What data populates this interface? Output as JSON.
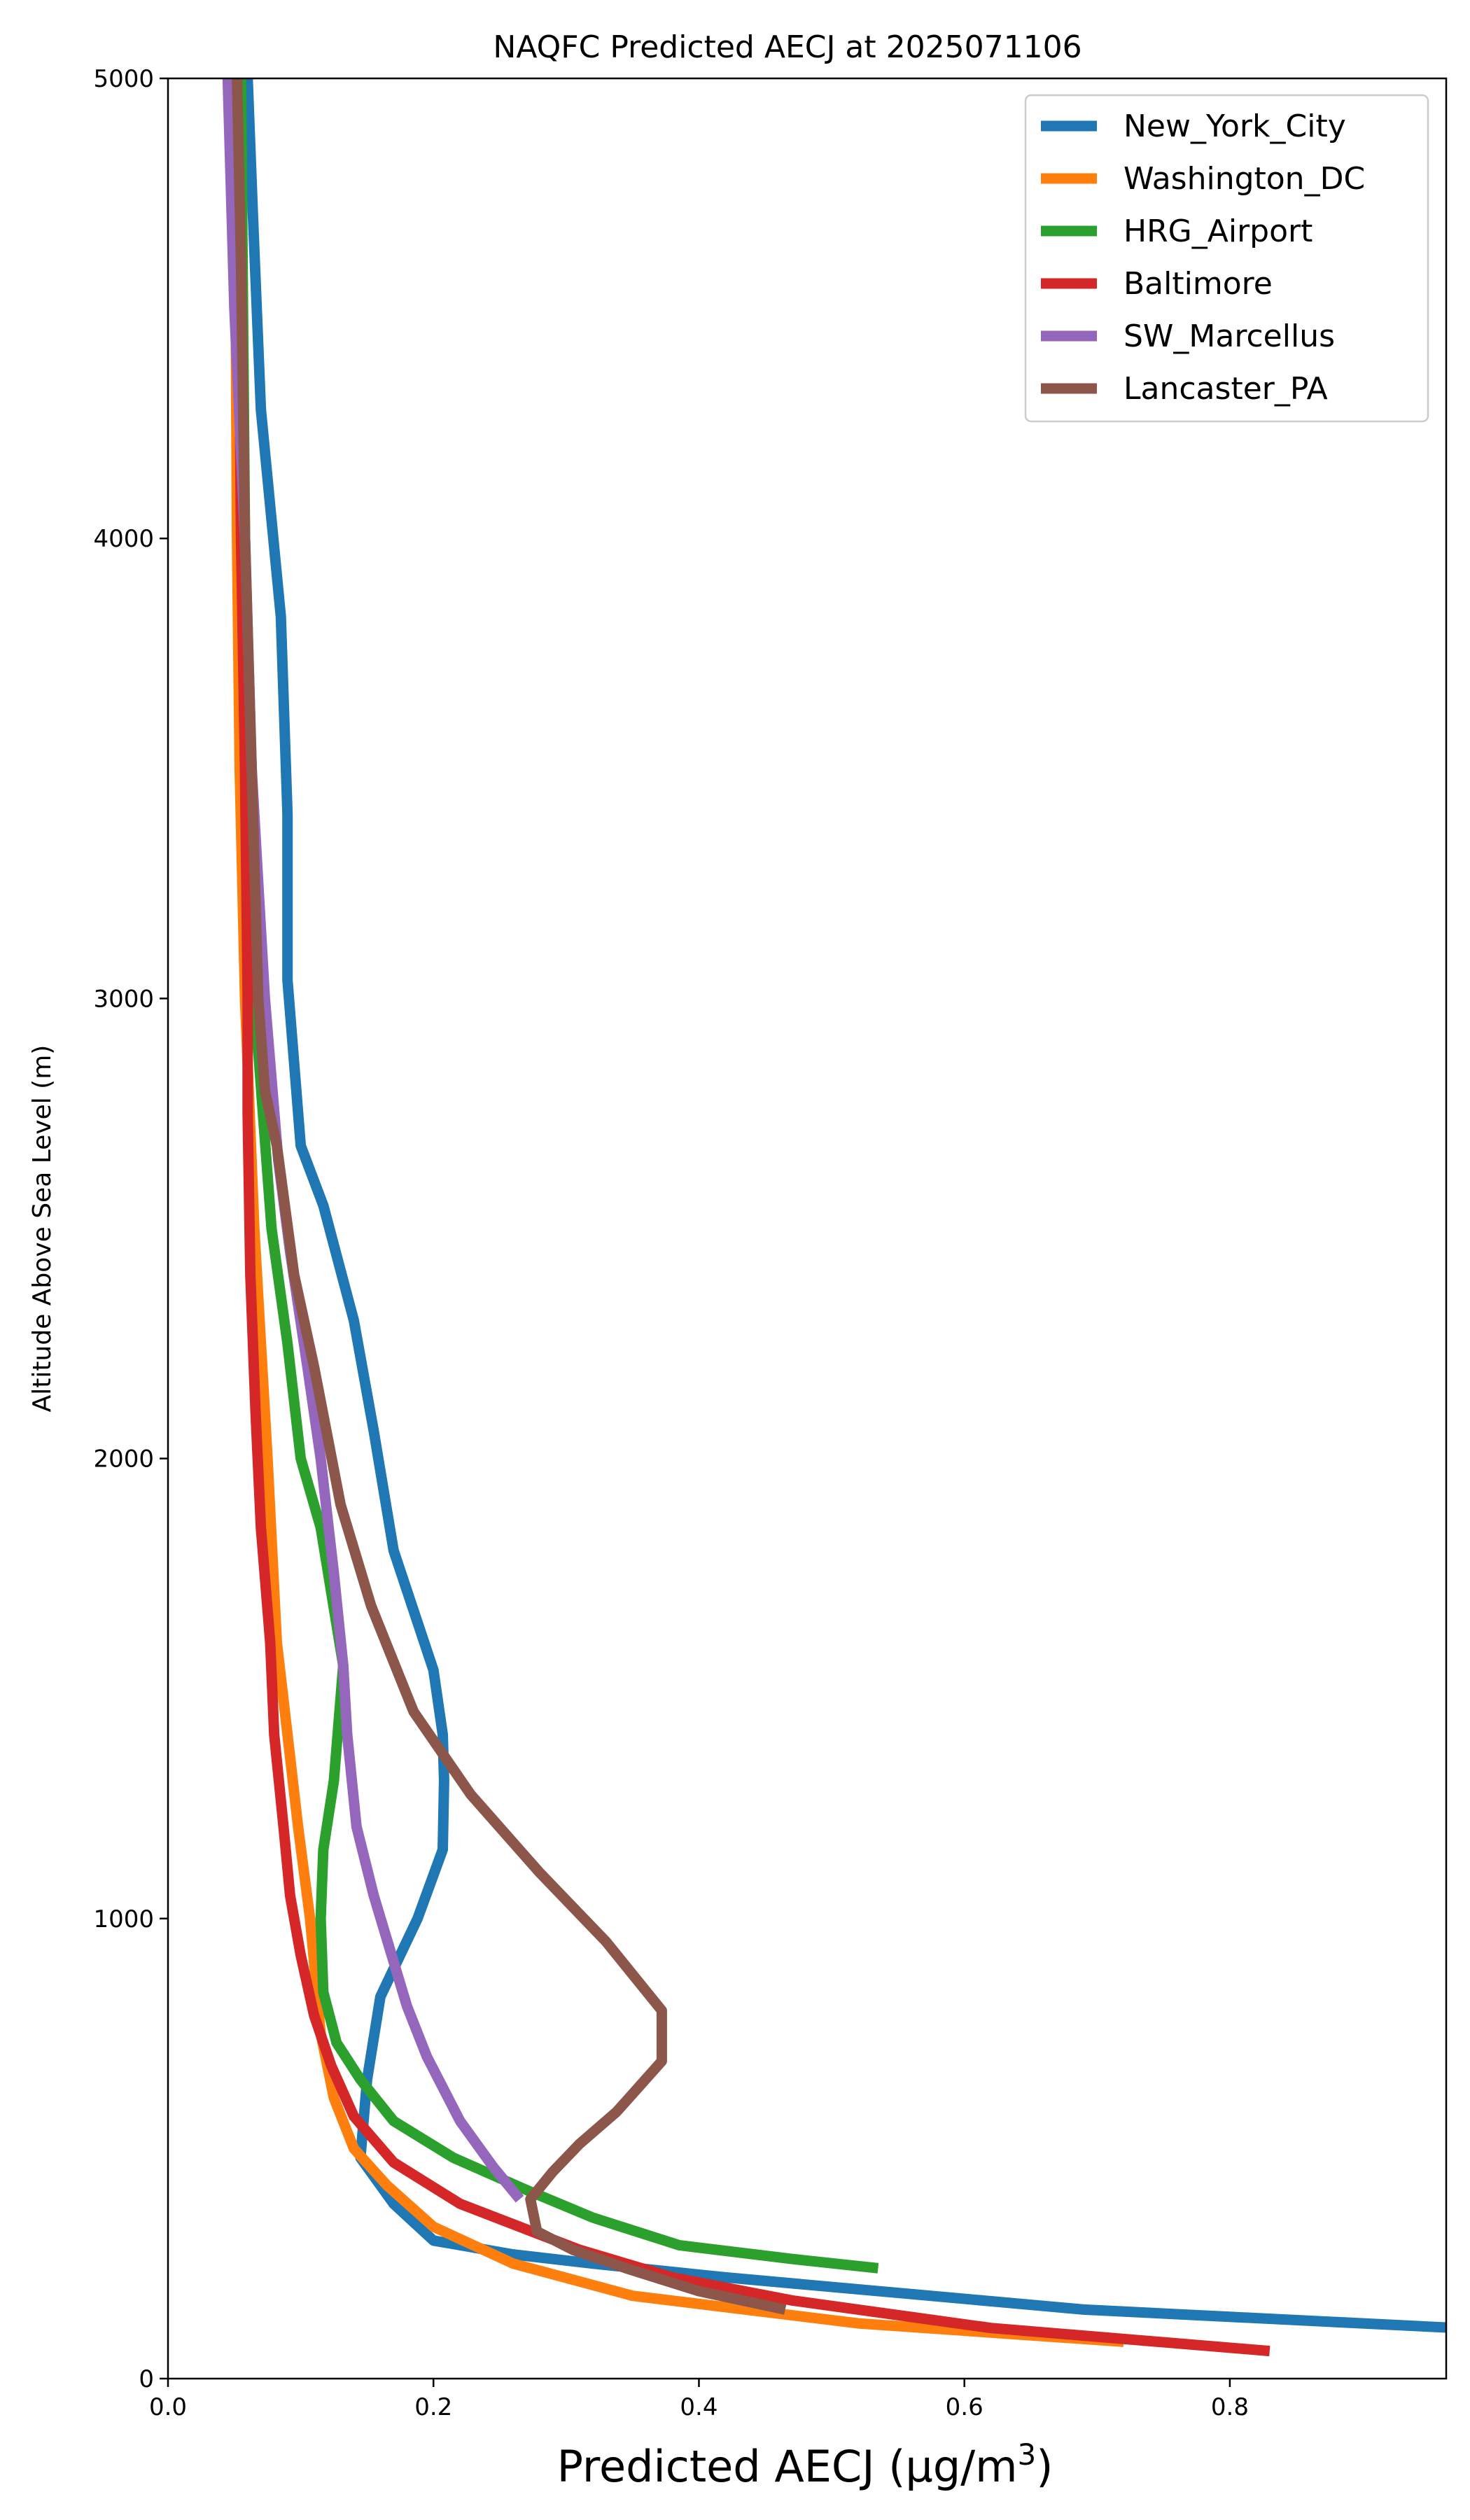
{
  "chart_data": {
    "type": "line",
    "title": "NAQFC Predicted AECJ at 2025071106",
    "xlabel": "Predicted AECJ (μg/m",
    "xlabel_sup": "3",
    "xlabel_close": ")",
    "ylabel": "Altitude Above Sea Level (m)",
    "xlim": [
      0.0,
      0.963
    ],
    "ylim": [
      0,
      5000
    ],
    "xticks": [
      "0.0",
      "0.2",
      "0.4",
      "0.6",
      "0.8"
    ],
    "xtick_values": [
      0.0,
      0.2,
      0.4,
      0.6,
      0.8
    ],
    "yticks": [
      "0",
      "1000",
      "2000",
      "3000",
      "4000",
      "5000"
    ],
    "ytick_values": [
      0,
      1000,
      2000,
      3000,
      4000,
      5000
    ],
    "grid": false,
    "legend_position": "upper right",
    "series": [
      {
        "name": "New_York_City",
        "color": "#1f77b4",
        "points": [
          [
            0.97,
            110
          ],
          [
            0.69,
            150
          ],
          [
            0.42,
            220
          ],
          [
            0.32,
            250
          ],
          [
            0.26,
            270
          ],
          [
            0.2,
            300
          ],
          [
            0.17,
            380
          ],
          [
            0.145,
            480
          ],
          [
            0.15,
            650
          ],
          [
            0.16,
            830
          ],
          [
            0.188,
            1000
          ],
          [
            0.207,
            1150
          ],
          [
            0.208,
            1300
          ],
          [
            0.207,
            1400
          ],
          [
            0.2,
            1540
          ],
          [
            0.17,
            1800
          ],
          [
            0.155,
            2060
          ],
          [
            0.14,
            2300
          ],
          [
            0.117,
            2550
          ],
          [
            0.1,
            2680
          ],
          [
            0.09,
            3040
          ],
          [
            0.09,
            3400
          ],
          [
            0.085,
            3830
          ],
          [
            0.07,
            4280
          ],
          [
            0.064,
            4700
          ],
          [
            0.06,
            5000
          ]
        ]
      },
      {
        "name": "Washington_DC",
        "color": "#ff7f0e",
        "points": [
          [
            0.72,
            80
          ],
          [
            0.52,
            120
          ],
          [
            0.35,
            180
          ],
          [
            0.26,
            250
          ],
          [
            0.2,
            330
          ],
          [
            0.165,
            420
          ],
          [
            0.14,
            500
          ],
          [
            0.125,
            610
          ],
          [
            0.115,
            750
          ],
          [
            0.107,
            1000
          ],
          [
            0.098,
            1200
          ],
          [
            0.09,
            1400
          ],
          [
            0.082,
            1600
          ],
          [
            0.075,
            2000
          ],
          [
            0.065,
            2500
          ],
          [
            0.058,
            3000
          ],
          [
            0.054,
            3500
          ],
          [
            0.052,
            4000
          ],
          [
            0.05,
            5000
          ]
        ]
      },
      {
        "name": "HRG_Airport",
        "color": "#2ca02c",
        "points": [
          [
            0.535,
            240
          ],
          [
            0.47,
            260
          ],
          [
            0.385,
            290
          ],
          [
            0.32,
            350
          ],
          [
            0.27,
            410
          ],
          [
            0.215,
            480
          ],
          [
            0.17,
            560
          ],
          [
            0.145,
            650
          ],
          [
            0.127,
            730
          ],
          [
            0.117,
            840
          ],
          [
            0.115,
            1000
          ],
          [
            0.117,
            1150
          ],
          [
            0.125,
            1300
          ],
          [
            0.132,
            1550
          ],
          [
            0.115,
            1850
          ],
          [
            0.1,
            2000
          ],
          [
            0.09,
            2250
          ],
          [
            0.078,
            2500
          ],
          [
            0.065,
            3000
          ],
          [
            0.06,
            3500
          ],
          [
            0.058,
            4000
          ],
          [
            0.055,
            5000
          ]
        ]
      },
      {
        "name": "Baltimore",
        "color": "#d62728",
        "points": [
          [
            0.83,
            60
          ],
          [
            0.62,
            110
          ],
          [
            0.47,
            170
          ],
          [
            0.38,
            220
          ],
          [
            0.31,
            280
          ],
          [
            0.22,
            380
          ],
          [
            0.17,
            470
          ],
          [
            0.14,
            570
          ],
          [
            0.123,
            680
          ],
          [
            0.11,
            790
          ],
          [
            0.1,
            920
          ],
          [
            0.092,
            1050
          ],
          [
            0.087,
            1200
          ],
          [
            0.08,
            1400
          ],
          [
            0.077,
            1600
          ],
          [
            0.07,
            1850
          ],
          [
            0.066,
            2100
          ],
          [
            0.062,
            2400
          ],
          [
            0.06,
            2750
          ],
          [
            0.06,
            3000
          ],
          [
            0.058,
            3500
          ],
          [
            0.055,
            4000
          ],
          [
            0.052,
            5000
          ]
        ]
      },
      {
        "name": "SW_Marcellus",
        "color": "#9467bd",
        "points": [
          [
            0.265,
            390
          ],
          [
            0.245,
            460
          ],
          [
            0.22,
            560
          ],
          [
            0.195,
            700
          ],
          [
            0.18,
            810
          ],
          [
            0.155,
            1050
          ],
          [
            0.142,
            1200
          ],
          [
            0.135,
            1400
          ],
          [
            0.132,
            1550
          ],
          [
            0.125,
            1750
          ],
          [
            0.115,
            2000
          ],
          [
            0.105,
            2200
          ],
          [
            0.092,
            2450
          ],
          [
            0.083,
            2650
          ],
          [
            0.073,
            3000
          ],
          [
            0.063,
            3500
          ],
          [
            0.058,
            4000
          ],
          [
            0.05,
            4500
          ],
          [
            0.045,
            5000
          ]
        ]
      },
      {
        "name": "Lancaster_PA",
        "color": "#8c564b",
        "points": [
          [
            0.465,
            150
          ],
          [
            0.4,
            190
          ],
          [
            0.345,
            240
          ],
          [
            0.305,
            280
          ],
          [
            0.278,
            320
          ],
          [
            0.273,
            390
          ],
          [
            0.29,
            450
          ],
          [
            0.31,
            510
          ],
          [
            0.338,
            580
          ],
          [
            0.372,
            690
          ],
          [
            0.372,
            800
          ],
          [
            0.33,
            950
          ],
          [
            0.28,
            1100
          ],
          [
            0.228,
            1270
          ],
          [
            0.185,
            1450
          ],
          [
            0.153,
            1680
          ],
          [
            0.13,
            1900
          ],
          [
            0.11,
            2200
          ],
          [
            0.095,
            2400
          ],
          [
            0.082,
            2680
          ],
          [
            0.073,
            2800
          ],
          [
            0.068,
            3000
          ],
          [
            0.063,
            3500
          ],
          [
            0.058,
            4000
          ],
          [
            0.055,
            4600
          ],
          [
            0.052,
            5000
          ]
        ]
      }
    ]
  }
}
